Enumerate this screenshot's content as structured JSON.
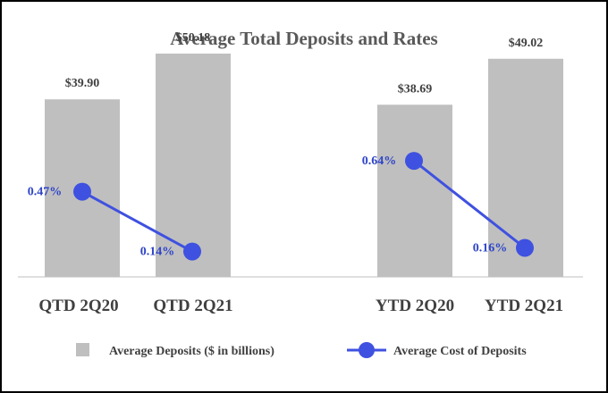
{
  "chart_data": {
    "type": "bar",
    "title": "Average Total Deposits and Rates",
    "categories": [
      "QTD 2Q20",
      "QTD 2Q21",
      "YTD 2Q20",
      "YTD 2Q21"
    ],
    "series": [
      {
        "name": "Average Deposits ($ in billions)",
        "kind": "bar",
        "values": [
          39.9,
          50.18,
          38.69,
          49.02
        ],
        "labels": [
          "$39.90",
          "$50.18",
          "$38.69",
          "$49.02"
        ]
      },
      {
        "name": "Average Cost of Deposits",
        "kind": "line",
        "values": [
          0.47,
          0.14,
          0.64,
          0.16
        ],
        "labels": [
          "0.47%",
          "0.14%",
          "0.64%",
          "0.16%"
        ],
        "segments": [
          [
            0,
            1
          ],
          [
            2,
            3
          ]
        ]
      }
    ],
    "bar_ylim": [
      0,
      55
    ],
    "line_ylim": [
      0,
      1.35
    ],
    "legend_position": "bottom",
    "colors": {
      "bar": "#bfbfbf",
      "line": "#3f51e0",
      "text": "#404040",
      "rate_label": "#2f45c8",
      "axis": "#bfbfbf",
      "frame": "#000000"
    }
  }
}
